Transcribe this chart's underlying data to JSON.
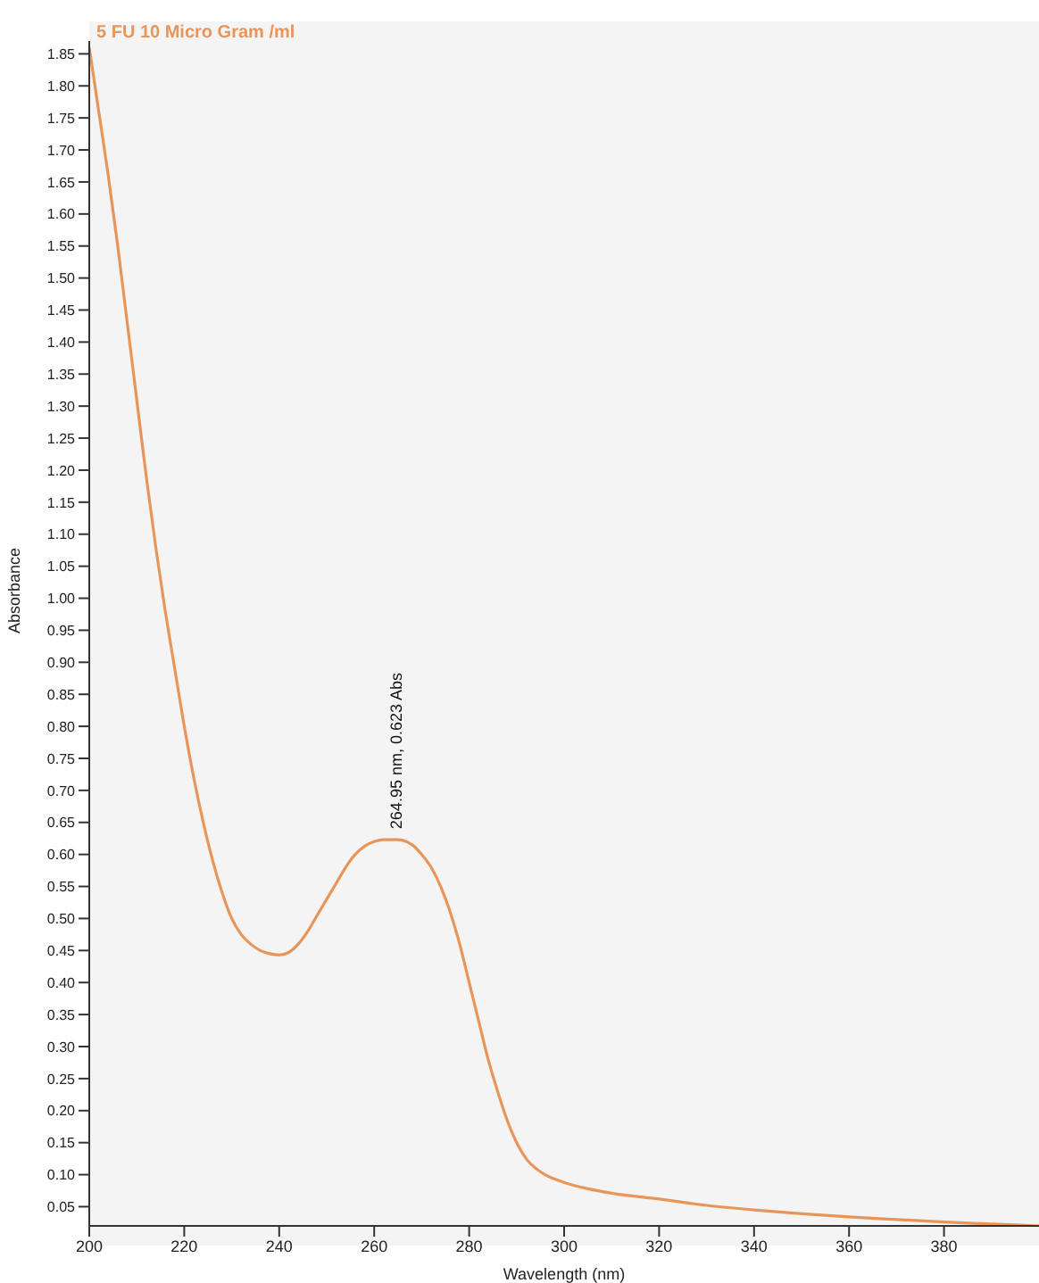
{
  "chart_data": {
    "type": "line",
    "xlabel": "Wavelength (nm)",
    "ylabel": "Absorbance",
    "xlim": [
      200,
      400
    ],
    "xticks": [
      200,
      220,
      240,
      260,
      280,
      300,
      320,
      340,
      360,
      380
    ],
    "ylim": [
      0.02,
      1.87
    ],
    "yticks": [
      0.05,
      {
        "value": 0.1,
        "label": "0.10"
      },
      0.15,
      {
        "value": 0.2,
        "label": "0.20"
      },
      0.25,
      {
        "value": 0.3,
        "label": "0.30"
      },
      0.35,
      {
        "value": 0.4,
        "label": "0.40"
      },
      0.45,
      {
        "value": 0.5,
        "label": "0.50"
      },
      0.55,
      {
        "value": 0.6,
        "label": "0.60"
      },
      0.65,
      {
        "value": 0.7,
        "label": "0.70"
      },
      0.75,
      {
        "value": 0.8,
        "label": "0.80"
      },
      0.85,
      {
        "value": 0.9,
        "label": "0.90"
      },
      0.95,
      {
        "value": 1,
        "label": "1.00"
      },
      1.05,
      {
        "value": 1.1,
        "label": "1.10"
      },
      1.15,
      {
        "value": 1.2,
        "label": "1.20"
      },
      1.25,
      {
        "value": 1.3,
        "label": "1.30"
      },
      1.35,
      {
        "value": 1.4,
        "label": "1.40"
      },
      1.45,
      {
        "value": 1.5,
        "label": "1.50"
      },
      1.55,
      {
        "value": 1.6,
        "label": "1.60"
      },
      1.65,
      {
        "value": 1.7,
        "label": "1.70"
      },
      1.75,
      {
        "value": 1.8,
        "label": "1.80"
      },
      1.85
    ],
    "legend": "top left",
    "marker": "none",
    "line_style": "solid",
    "series": [
      {
        "name": "5 FU 10 Micro Gram /ml",
        "color": "#e8955a",
        "x": [
          200,
          202,
          204,
          206,
          208,
          210,
          212,
          214,
          216,
          218,
          220,
          222,
          224,
          226,
          228,
          230,
          232,
          234,
          236,
          238,
          240,
          242,
          244,
          246,
          248,
          250,
          252,
          254,
          256,
          258,
          260,
          262,
          264.95,
          266,
          268,
          270,
          272,
          274,
          276,
          278,
          280,
          282,
          284,
          286,
          288,
          290,
          292,
          294,
          296,
          300,
          305,
          310,
          320,
          330,
          340,
          350,
          360,
          370,
          380,
          390,
          400
        ],
        "values": [
          1.86,
          1.76,
          1.66,
          1.55,
          1.43,
          1.31,
          1.19,
          1.08,
          0.98,
          0.89,
          0.8,
          0.72,
          0.65,
          0.59,
          0.54,
          0.5,
          0.475,
          0.46,
          0.45,
          0.445,
          0.443,
          0.447,
          0.46,
          0.48,
          0.505,
          0.53,
          0.555,
          0.58,
          0.6,
          0.613,
          0.62,
          0.623,
          0.623,
          0.622,
          0.615,
          0.6,
          0.58,
          0.55,
          0.51,
          0.46,
          0.4,
          0.34,
          0.28,
          0.23,
          0.185,
          0.15,
          0.125,
          0.11,
          0.1,
          0.088,
          0.078,
          0.071,
          0.062,
          0.052,
          0.045,
          0.039,
          0.034,
          0.03,
          0.026,
          0.023,
          0.02
        ]
      }
    ],
    "annotations": [
      {
        "text": "264.95 nm, 0.623 Abs",
        "x": 264.95,
        "y": 0.623
      }
    ]
  }
}
